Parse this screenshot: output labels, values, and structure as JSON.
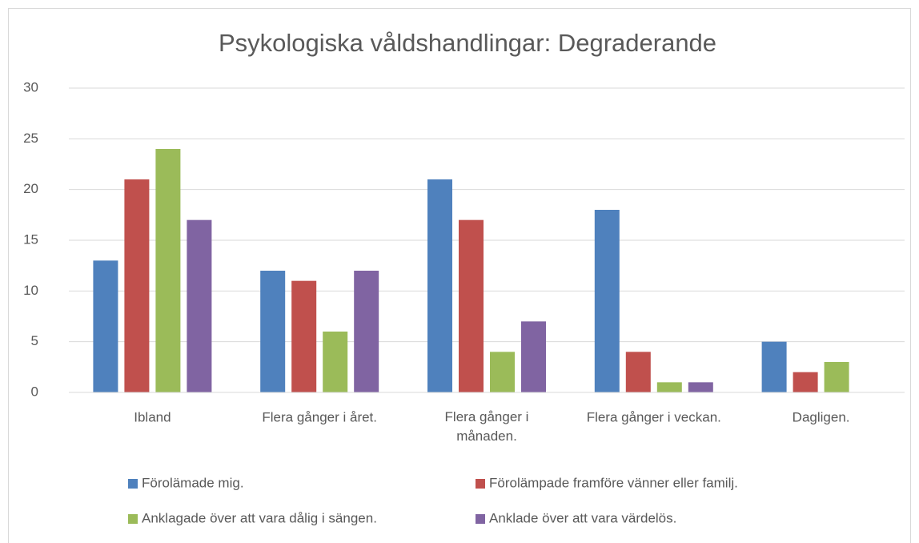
{
  "chart_data": {
    "type": "bar",
    "title": "Psykologiska våldshandlingar: Degraderande",
    "categories": [
      "Ibland",
      "Flera gånger i året.",
      "Flera gånger i månaden.",
      "Flera gånger i veckan.",
      "Dagligen."
    ],
    "series": [
      {
        "name": "Förolämade mig.",
        "color": "#4f81bd",
        "values": [
          13,
          12,
          21,
          18,
          5
        ]
      },
      {
        "name": "Förolämpade framföre vänner eller familj.",
        "color": "#c0504d",
        "values": [
          21,
          11,
          17,
          4,
          2
        ]
      },
      {
        "name": "Anklagade över att vara dålig i sängen.",
        "color": "#9bbb59",
        "values": [
          24,
          6,
          4,
          1,
          3
        ]
      },
      {
        "name": "Anklade över att vara värdelös.",
        "color": "#8064a2",
        "values": [
          17,
          12,
          7,
          1,
          0
        ]
      }
    ],
    "ylim": [
      0,
      30
    ],
    "yticks": [
      0,
      5,
      10,
      15,
      20,
      25,
      30
    ],
    "grid": true,
    "legend": "bottom"
  }
}
